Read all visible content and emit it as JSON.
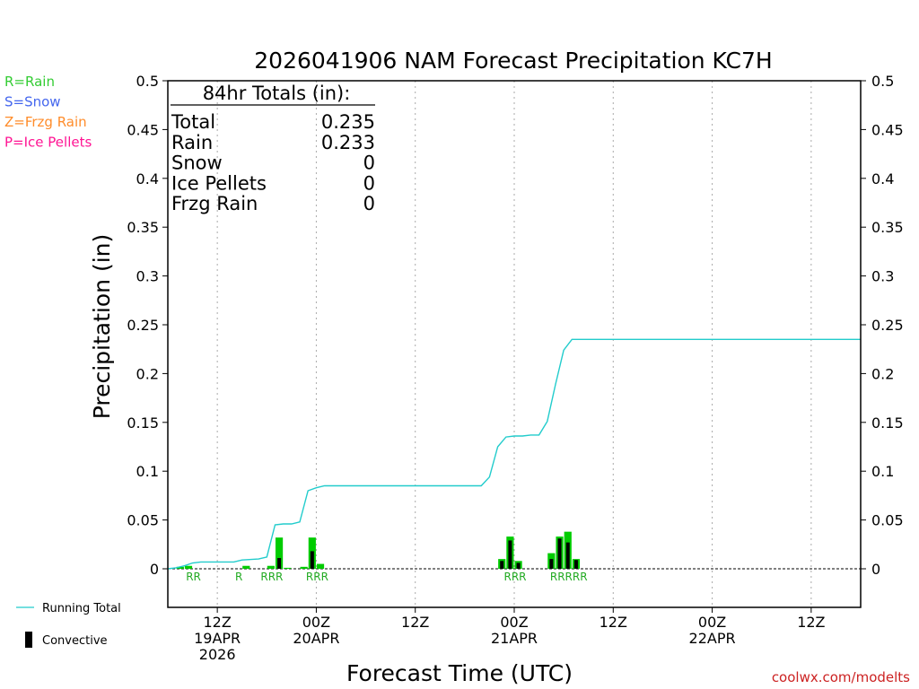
{
  "chart_data": {
    "type": "bar+line",
    "title": "2026041906 NAM Forecast Precipitation KC7H",
    "xlabel": "Forecast Time (UTC)",
    "ylabel": "Precipitation (in)",
    "ylim": [
      0,
      0.5
    ],
    "yticks": [
      "0",
      "0.05",
      "0.1",
      "0.15",
      "0.2",
      "0.25",
      "0.3",
      "0.35",
      "0.4",
      "0.45",
      "0.5"
    ],
    "xlim_hours": [
      0,
      84
    ],
    "xticks": [
      {
        "hour": 6,
        "lines": [
          "12Z",
          "19APR",
          "2026"
        ]
      },
      {
        "hour": 18,
        "lines": [
          "00Z",
          "20APR"
        ]
      },
      {
        "hour": 30,
        "lines": [
          "12Z"
        ]
      },
      {
        "hour": 42,
        "lines": [
          "00Z",
          "21APR"
        ]
      },
      {
        "hour": 54,
        "lines": [
          "12Z"
        ]
      },
      {
        "hour": 66,
        "lines": [
          "00Z",
          "22APR"
        ]
      },
      {
        "hour": 78,
        "lines": [
          "12Z"
        ]
      }
    ],
    "legend_types": [
      {
        "text": "R=Rain",
        "color": "#33cc33"
      },
      {
        "text": "S=Snow",
        "color": "#4466ee"
      },
      {
        "text": "Z=Frzg Rain",
        "color": "#ff8c2a"
      },
      {
        "text": "P=Ice Pellets",
        "color": "#ff1493"
      }
    ],
    "legend_bottom": {
      "running_total": "Running Total",
      "convective": "Convective"
    },
    "totals": {
      "header": "84hr Totals (in):",
      "rows": [
        {
          "label": "Total",
          "value": "0.235"
        },
        {
          "label": "Rain",
          "value": "0.233"
        },
        {
          "label": "Snow",
          "value": "0"
        },
        {
          "label": "Ice Pellets",
          "value": "0"
        },
        {
          "label": "Frzg Rain",
          "value": "0"
        }
      ]
    },
    "bars": [
      {
        "hour": 2,
        "total": 0.002,
        "convective": 0.0,
        "type": "R"
      },
      {
        "hour": 3,
        "total": 0.003,
        "convective": 0.0,
        "type": "R"
      },
      {
        "hour": 10,
        "total": 0.003,
        "convective": 0.0,
        "type": "R"
      },
      {
        "hour": 13,
        "total": 0.003,
        "convective": 0.0,
        "type": "R"
      },
      {
        "hour": 14,
        "total": 0.032,
        "convective": 0.011,
        "type": "R"
      },
      {
        "hour": 15,
        "total": 0.001,
        "convective": 0.0,
        "type": "R"
      },
      {
        "hour": 17,
        "total": 0.002,
        "convective": 0.0,
        "type": "R"
      },
      {
        "hour": 18,
        "total": 0.032,
        "convective": 0.018,
        "type": "R"
      },
      {
        "hour": 19,
        "total": 0.005,
        "convective": 0.0,
        "type": "R"
      },
      {
        "hour": 41,
        "total": 0.01,
        "convective": 0.008,
        "type": "R"
      },
      {
        "hour": 42,
        "total": 0.033,
        "convective": 0.029,
        "type": "R"
      },
      {
        "hour": 43,
        "total": 0.008,
        "convective": 0.006,
        "type": "R"
      },
      {
        "hour": 47,
        "total": 0.016,
        "convective": 0.01,
        "type": "R"
      },
      {
        "hour": 48,
        "total": 0.033,
        "convective": 0.031,
        "type": "R"
      },
      {
        "hour": 49,
        "total": 0.038,
        "convective": 0.027,
        "type": "R"
      },
      {
        "hour": 50,
        "total": 0.01,
        "convective": 0.009,
        "type": "R"
      }
    ],
    "running_total": {
      "hours": [
        0,
        1,
        2,
        3,
        4,
        8,
        9,
        11,
        12,
        13,
        14,
        15,
        16,
        17,
        18,
        19,
        20,
        38,
        39,
        40,
        41,
        42,
        43,
        44,
        45,
        46,
        47,
        48,
        49,
        50,
        84
      ],
      "values": [
        0,
        0.001,
        0.003,
        0.006,
        0.007,
        0.007,
        0.009,
        0.01,
        0.012,
        0.045,
        0.046,
        0.046,
        0.048,
        0.08,
        0.083,
        0.085,
        0.085,
        0.085,
        0.094,
        0.125,
        0.135,
        0.136,
        0.136,
        0.137,
        0.137,
        0.151,
        0.189,
        0.224,
        0.235,
        0.235,
        0.235
      ]
    },
    "type_labels": [
      {
        "hour": 3,
        "text": "RR"
      },
      {
        "hour": 8.5,
        "text": "R"
      },
      {
        "hour": 12.5,
        "text": "RRR"
      },
      {
        "hour": 18,
        "text": "RRR"
      },
      {
        "hour": 42,
        "text": "RRR"
      },
      {
        "hour": 48.5,
        "text": "RRRRR"
      }
    ],
    "credit": "coolwx.com/modelts"
  }
}
